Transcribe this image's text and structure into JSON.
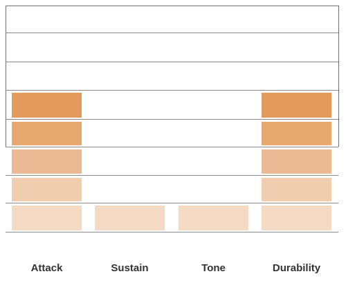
{
  "chart_data": {
    "type": "bar",
    "categories": [
      "Attack",
      "Sustain",
      "Tone",
      "Durability"
    ],
    "values": [
      5,
      1,
      1,
      5
    ],
    "ylim": [
      0,
      8
    ],
    "grid": true,
    "level_colors": [
      "#f4d9c3",
      "#f1cdb0",
      "#ebba94",
      "#e8a970",
      "#e4995d"
    ]
  }
}
